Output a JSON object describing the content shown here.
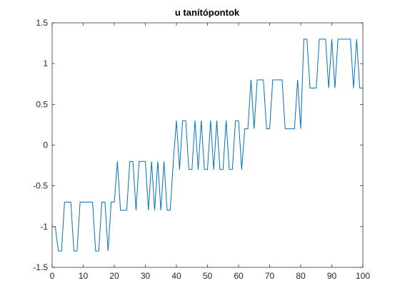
{
  "chart_data": {
    "type": "line",
    "title": "u tanítópontok",
    "xlabel": "",
    "ylabel": "",
    "xlim": [
      0,
      100
    ],
    "ylim": [
      -1.5,
      1.5
    ],
    "xticks": [
      0,
      10,
      20,
      30,
      40,
      50,
      60,
      70,
      80,
      90,
      100
    ],
    "yticks": [
      -1.5,
      -1,
      -0.5,
      0,
      0.5,
      1,
      1.5
    ],
    "xtick_labels": [
      "0",
      "10",
      "20",
      "30",
      "40",
      "50",
      "60",
      "70",
      "80",
      "90",
      "100"
    ],
    "ytick_labels": [
      "-1.5",
      "-1",
      "-0.5",
      "0",
      "0.5",
      "1",
      "1.5"
    ],
    "grid": false,
    "series": [
      {
        "color": "#0072BD",
        "x": [
          0,
          1,
          2,
          3,
          4,
          5,
          6,
          7,
          8,
          9,
          10,
          11,
          12,
          13,
          14,
          15,
          16,
          17,
          18,
          19,
          20,
          21,
          22,
          23,
          24,
          25,
          26,
          27,
          28,
          29,
          30,
          31,
          32,
          33,
          34,
          35,
          36,
          37,
          38,
          39,
          40,
          41,
          42,
          43,
          44,
          45,
          46,
          47,
          48,
          49,
          50,
          51,
          52,
          53,
          54,
          55,
          56,
          57,
          58,
          59,
          60,
          61,
          62,
          63,
          64,
          65,
          66,
          67,
          68,
          69,
          70,
          71,
          72,
          73,
          74,
          75,
          76,
          77,
          78,
          79,
          80,
          81,
          82,
          83,
          84,
          85,
          86,
          87,
          88,
          89,
          90,
          91,
          92,
          93,
          94,
          95,
          96,
          97,
          98,
          99,
          100
        ],
        "y": [
          -1,
          -1,
          -1.3,
          -1.3,
          -0.7,
          -0.7,
          -0.7,
          -1.3,
          -1.3,
          -0.7,
          -0.7,
          -0.7,
          -0.7,
          -0.7,
          -1.3,
          -1.3,
          -0.7,
          -0.7,
          -1.3,
          -0.7,
          -0.7,
          -0.2,
          -0.8,
          -0.8,
          -0.8,
          -0.2,
          -0.2,
          -0.8,
          -0.2,
          -0.2,
          -0.2,
          -0.8,
          -0.2,
          -0.8,
          -0.2,
          -0.8,
          -0.2,
          -0.8,
          -0.8,
          -0.2,
          0.3,
          -0.3,
          0.3,
          0.3,
          -0.3,
          -0.3,
          0.3,
          -0.3,
          0.3,
          -0.3,
          -0.3,
          0.3,
          -0.3,
          0.3,
          -0.3,
          -0.3,
          0.3,
          -0.3,
          -0.3,
          0.3,
          0.3,
          -0.3,
          0.2,
          0.2,
          0.8,
          0.2,
          0.8,
          0.8,
          0.8,
          0.2,
          0.2,
          0.8,
          0.8,
          0.8,
          0.8,
          0.2,
          0.2,
          0.2,
          0.2,
          0.8,
          0.2,
          1.3,
          1.3,
          0.7,
          0.7,
          0.7,
          1.3,
          1.3,
          1.3,
          0.7,
          1.3,
          0.7,
          1.3,
          1.3,
          1.3,
          1.3,
          1.3,
          0.7,
          1.3,
          0.7,
          0.7
        ]
      }
    ]
  }
}
